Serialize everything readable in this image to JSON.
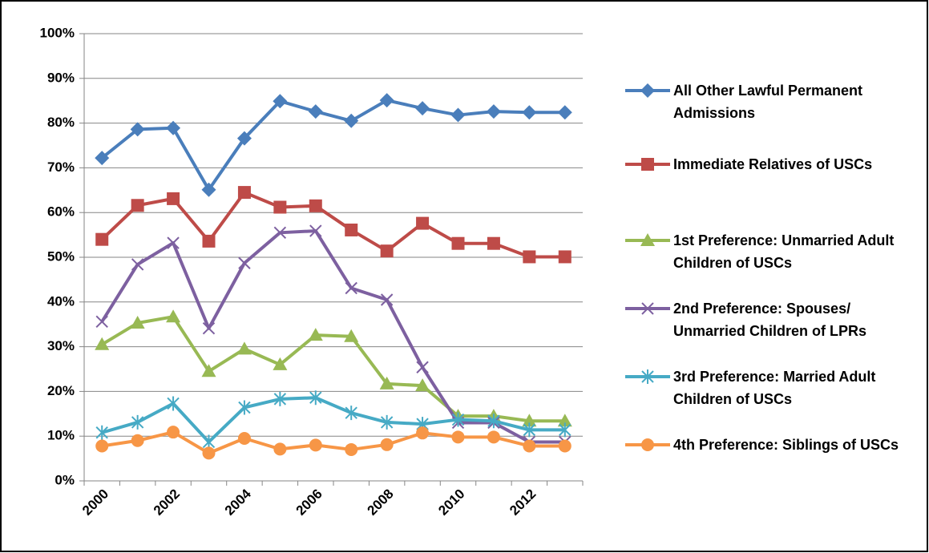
{
  "chart_data": {
    "type": "line",
    "categories": [
      "2000",
      null,
      "2002",
      null,
      "2004",
      null,
      "2006",
      null,
      "2008",
      null,
      "2010",
      null,
      "2012",
      null
    ],
    "ylim": [
      0,
      100
    ],
    "yticks": [
      {
        "value": 0,
        "label": "0%"
      },
      {
        "value": 10,
        "label": "10%"
      },
      {
        "value": 20,
        "label": "20%"
      },
      {
        "value": 30,
        "label": "30%"
      },
      {
        "value": 40,
        "label": "40%"
      },
      {
        "value": 50,
        "label": "50%"
      },
      {
        "value": 60,
        "label": "60%"
      },
      {
        "value": 70,
        "label": "70%"
      },
      {
        "value": 80,
        "label": "80%"
      },
      {
        "value": 90,
        "label": "90%"
      },
      {
        "value": 100,
        "label": "100%"
      }
    ],
    "grid": true,
    "series": [
      {
        "name": "All Other Lawful Permanent Admissions",
        "color": "#4a7ebb",
        "marker": "diamond",
        "values": [
          72.2,
          78.6,
          78.9,
          65.1,
          76.6,
          84.9,
          82.6,
          80.5,
          85.1,
          83.3,
          81.8,
          82.6,
          82.4,
          82.4
        ]
      },
      {
        "name": "Immediate Relatives of USCs",
        "color": "#be4b48",
        "marker": "square",
        "values": [
          54,
          61.6,
          63.1,
          53.6,
          64.5,
          61.2,
          61.5,
          56.1,
          51.4,
          57.6,
          53.1,
          53.1,
          50.1,
          50.1
        ]
      },
      {
        "name": "1st Preference: Unmarried Adult Children of USCs",
        "color": "#98b954",
        "marker": "triangle",
        "values": [
          30.5,
          35.3,
          36.7,
          24.5,
          29.5,
          26,
          32.6,
          32.3,
          21.7,
          21.3,
          14.5,
          14.5,
          13.4,
          13.4
        ]
      },
      {
        "name": "2nd Preference: Spouses/ Unmarried Children of LPRs",
        "color": "#7d60a0",
        "marker": "x",
        "values": [
          35.6,
          48.4,
          53.2,
          34.1,
          48.7,
          55.5,
          55.9,
          43.1,
          40.5,
          25.4,
          13,
          13,
          8.7,
          8.7
        ]
      },
      {
        "name": "3rd Preference: Married Adult Children of USCs",
        "color": "#46aac5",
        "marker": "star",
        "values": [
          10.8,
          13.1,
          17.3,
          8.7,
          16.4,
          18.3,
          18.6,
          15.2,
          13.1,
          12.7,
          13.7,
          13.4,
          11.4,
          11.4
        ]
      },
      {
        "name": "4th Preference: Siblings of USCs",
        "color": "#f79646",
        "marker": "circle",
        "values": [
          7.8,
          9,
          10.9,
          6.2,
          9.5,
          7.1,
          8,
          7,
          8.1,
          10.7,
          9.8,
          9.8,
          7.8,
          7.8
        ]
      }
    ]
  }
}
